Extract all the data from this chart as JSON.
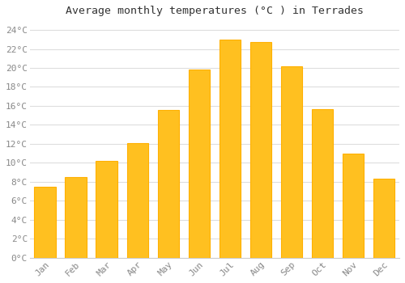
{
  "title": "Average monthly temperatures (°C ) in Terrades",
  "months": [
    "Jan",
    "Feb",
    "Mar",
    "Apr",
    "May",
    "Jun",
    "Jul",
    "Aug",
    "Sep",
    "Oct",
    "Nov",
    "Dec"
  ],
  "values": [
    7.5,
    8.5,
    10.2,
    12.1,
    15.6,
    19.8,
    23.0,
    22.7,
    20.2,
    15.7,
    11.0,
    8.3
  ],
  "bar_color": "#FFC020",
  "bar_edge_color": "#FFB000",
  "plot_bg_color": "#FFFFFF",
  "figure_bg_color": "#FFFFFF",
  "grid_color": "#DDDDDD",
  "ylim": [
    0,
    25
  ],
  "yticks": [
    0,
    2,
    4,
    6,
    8,
    10,
    12,
    14,
    16,
    18,
    20,
    22,
    24
  ],
  "title_fontsize": 9.5,
  "tick_fontsize": 8,
  "tick_color": "#888888",
  "title_color": "#333333",
  "font_family": "monospace",
  "bar_width": 0.7
}
